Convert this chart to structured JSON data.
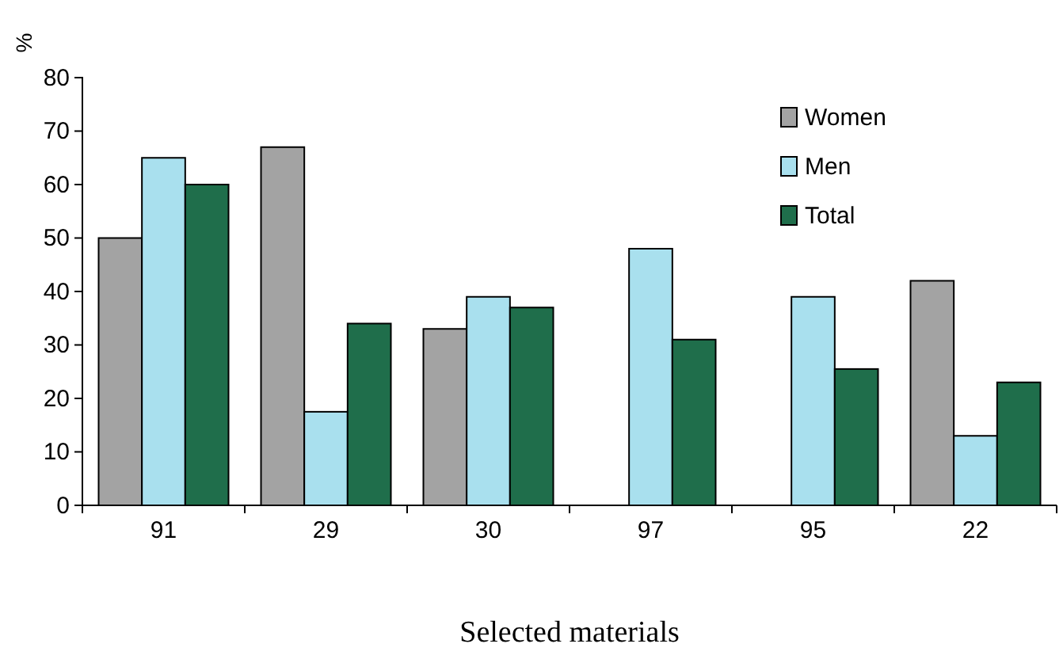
{
  "chart_data": {
    "type": "bar",
    "xlabel": "Selected materials",
    "ylabel": "%",
    "categories": [
      "91",
      "29",
      "30",
      "97",
      "95",
      "22"
    ],
    "series": [
      {
        "name": "Women",
        "color": "#a3a3a3",
        "values": [
          50,
          67,
          33,
          0,
          0,
          42
        ]
      },
      {
        "name": "Men",
        "color": "#a9e0ee",
        "values": [
          65,
          17.5,
          39,
          48,
          39,
          13
        ]
      },
      {
        "name": "Total",
        "color": "#1f6e4b",
        "values": [
          60,
          34,
          37,
          31,
          25.5,
          23
        ]
      }
    ],
    "ylim": [
      0,
      80
    ],
    "yticks": [
      0,
      10,
      20,
      30,
      40,
      50,
      60,
      70,
      80
    ],
    "legend": "top right",
    "grid": false
  }
}
